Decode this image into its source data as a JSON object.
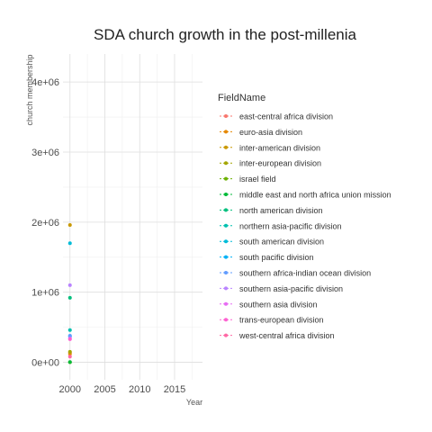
{
  "chart_data": {
    "type": "line",
    "title": "SDA church growth in the post-millenia",
    "xlabel": "Year",
    "ylabel": "church membership",
    "xlim": [
      1999,
      2019
    ],
    "ylim": [
      -250000,
      4400000
    ],
    "x_ticks": [
      2000,
      2005,
      2010,
      2015
    ],
    "x_tick_labels": [
      "2000",
      "2005",
      "2010",
      "2015"
    ],
    "y_ticks": [
      0,
      1000000,
      2000000,
      3000000,
      4000000
    ],
    "y_tick_labels": [
      "0e+00",
      "1e+06",
      "2e+06",
      "3e+06",
      "4e+06"
    ],
    "grid": true,
    "legend": {
      "title": "FieldName",
      "placement": "right"
    },
    "series": [
      {
        "name": "east-central africa division",
        "color": "#F8766D",
        "x": [
          2000
        ],
        "y": [
          140000
        ]
      },
      {
        "name": "euro-asia division",
        "color": "#E58700",
        "x": [
          2000
        ],
        "y": [
          120000
        ]
      },
      {
        "name": "inter-american division",
        "color": "#C99800",
        "x": [
          2000
        ],
        "y": [
          1960000
        ]
      },
      {
        "name": "inter-european division",
        "color": "#A3A500",
        "x": [
          2000
        ],
        "y": [
          150000
        ]
      },
      {
        "name": "israel field",
        "color": "#6BB100",
        "x": [
          2000
        ],
        "y": [
          1000
        ]
      },
      {
        "name": "middle east and north africa union mission",
        "color": "#00BA38",
        "x": [
          2000
        ],
        "y": [
          3000
        ]
      },
      {
        "name": "north american division",
        "color": "#00BF7D",
        "x": [
          2000
        ],
        "y": [
          920000
        ]
      },
      {
        "name": "northern asia-pacific division",
        "color": "#00C0AF",
        "x": [
          2000
        ],
        "y": [
          460000
        ]
      },
      {
        "name": "south american division",
        "color": "#00BCD8",
        "x": [
          2000
        ],
        "y": [
          1700000
        ]
      },
      {
        "name": "south pacific division",
        "color": "#00B0F6",
        "x": [
          2000
        ],
        "y": [
          370000
        ]
      },
      {
        "name": "southern africa-indian ocean division",
        "color": "#619CFF",
        "x": [
          2000
        ],
        "y": [
          380000
        ]
      },
      {
        "name": "southern asia-pacific division",
        "color": "#B983FF",
        "x": [
          2000
        ],
        "y": [
          1100000
        ]
      },
      {
        "name": "southern asia division",
        "color": "#E76BF3",
        "x": [
          2000
        ],
        "y": [
          340000
        ]
      },
      {
        "name": "trans-european division",
        "color": "#FD61D1",
        "x": [
          2000
        ],
        "y": [
          330000
        ]
      },
      {
        "name": "west-central africa division",
        "color": "#FF67A4",
        "x": [
          2000
        ],
        "y": [
          80000
        ]
      }
    ]
  }
}
